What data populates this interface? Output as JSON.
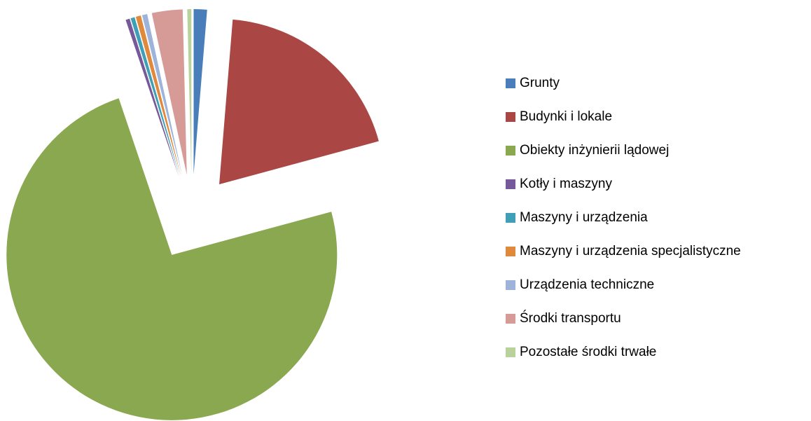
{
  "chart_data": {
    "type": "pie",
    "categories": [
      "Grunty",
      "Budynki i lokale",
      "Obiekty inżynierii lądowej",
      "Kotły i maszyny",
      "Maszyny i urządzenia",
      "Maszyny i urządzenia specjalistyczne",
      "Urządzenia techniczne",
      "Środki transportu",
      "Pozostałe środki trwałe"
    ],
    "values": [
      1.3,
      19.5,
      74,
      0.4,
      0.4,
      0.5,
      0.5,
      3.0,
      0.4
    ],
    "colors": [
      "#4a7ebb",
      "#aa4644",
      "#8aa84f",
      "#75599a",
      "#3f9fb6",
      "#e0883c",
      "#9db3d9",
      "#d69a97",
      "#b9d29b"
    ],
    "legend": "right",
    "exploded": true
  }
}
